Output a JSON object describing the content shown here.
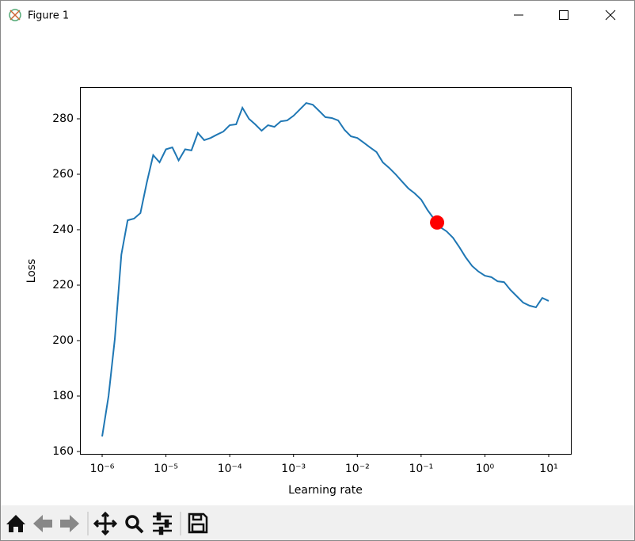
{
  "window": {
    "title": "Figure 1"
  },
  "chart_data": {
    "type": "line",
    "xlabel": "Learning rate",
    "ylabel": "Loss",
    "xscale": "log",
    "x": [
      1e-06,
      1.26e-06,
      1.58e-06,
      2e-06,
      2.51e-06,
      3.16e-06,
      3.98e-06,
      5.01e-06,
      6.31e-06,
      7.94e-06,
      1e-05,
      1.26e-05,
      1.58e-05,
      2e-05,
      2.51e-05,
      3.16e-05,
      3.98e-05,
      5.01e-05,
      6.31e-05,
      7.94e-05,
      0.0001,
      0.000126,
      0.000158,
      0.0002,
      0.000251,
      0.000316,
      0.000398,
      0.000501,
      0.000631,
      0.000794,
      0.001,
      0.00126,
      0.00158,
      0.002,
      0.00251,
      0.00316,
      0.00398,
      0.00501,
      0.00631,
      0.00794,
      0.01,
      0.0126,
      0.0158,
      0.02,
      0.0251,
      0.0316,
      0.0398,
      0.0501,
      0.0631,
      0.0794,
      0.1,
      0.126,
      0.158,
      0.2,
      0.251,
      0.316,
      0.398,
      0.501,
      0.631,
      0.794,
      1,
      1.26,
      1.58,
      2,
      2.51,
      3.16,
      3.98,
      5.01,
      6.31,
      7.94,
      10
    ],
    "values": [
      165.4,
      180,
      200.6,
      231,
      243.4,
      244,
      246,
      257,
      266.9,
      264.3,
      269,
      269.7,
      265,
      269,
      268.6,
      274.9,
      272.3,
      273.1,
      274.3,
      275.4,
      277.7,
      278,
      284,
      280,
      278,
      275.7,
      277.7,
      277.1,
      279.1,
      279.4,
      281.1,
      283.4,
      285.7,
      285.1,
      282.9,
      280.6,
      280.3,
      279.4,
      276,
      273.7,
      273.1,
      271.4,
      269.7,
      268,
      264.3,
      262.3,
      260,
      257.4,
      254.9,
      253.1,
      250.9,
      247.1,
      244,
      240.9,
      239.4,
      237.1,
      233.7,
      230,
      226.9,
      224.9,
      223.4,
      222.9,
      221.4,
      221.1,
      218.3,
      216,
      213.7,
      212.6,
      212,
      215.4,
      214.3
    ],
    "color": "#1f77b4",
    "highlight": {
      "x": 0.178,
      "y": 242.6,
      "color": "#ff0000"
    },
    "xlim": [
      4.49e-07,
      22.26
    ],
    "xticks": [
      {
        "value": 1e-06,
        "label": "10⁻⁶"
      },
      {
        "value": 1e-05,
        "label": "10⁻⁵"
      },
      {
        "value": 0.0001,
        "label": "10⁻⁴"
      },
      {
        "value": 0.001,
        "label": "10⁻³"
      },
      {
        "value": 0.01,
        "label": "10⁻²"
      },
      {
        "value": 0.1,
        "label": "10⁻¹"
      },
      {
        "value": 1,
        "label": "10⁰"
      },
      {
        "value": 10,
        "label": "10¹"
      }
    ],
    "ylim": [
      159.14,
      291.43
    ],
    "yticks": [
      160,
      180,
      200,
      220,
      240,
      260,
      280
    ],
    "grid": false
  }
}
